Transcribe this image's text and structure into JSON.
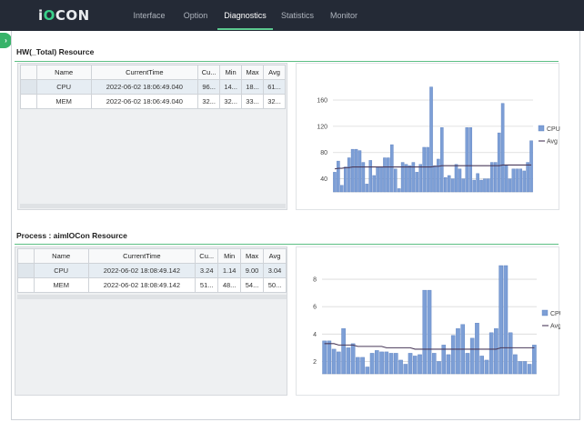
{
  "app": {
    "logo_prefix": "i",
    "logo_accent": "O",
    "logo_suffix": "CON"
  },
  "nav": {
    "items": [
      {
        "label": "Interface",
        "active": false
      },
      {
        "label": "Option",
        "active": false
      },
      {
        "label": "Diagnostics",
        "active": true
      },
      {
        "label": "Statistics",
        "active": false
      },
      {
        "label": "Monitor",
        "active": false
      }
    ]
  },
  "colors": {
    "bar": "#7d9fd6",
    "bar_stroke": "#5a7fbf",
    "avg_line": "#4a3a5a",
    "accent": "#5cc98f"
  },
  "hw": {
    "title": "HW(_Total) Resource",
    "columns": [
      "Name",
      "CurrentTime",
      "Cu...",
      "Min",
      "Max",
      "Avg"
    ],
    "rows": [
      [
        "CPU",
        "2022-06-02 18:06:49.040",
        "96...",
        "14...",
        "18...",
        "61..."
      ],
      [
        "MEM",
        "2022-06-02 18:06:49.040",
        "32...",
        "32...",
        "33...",
        "32..."
      ]
    ]
  },
  "proc": {
    "title": "Process : aimIOCon Resource",
    "columns": [
      "Name",
      "CurrentTime",
      "Cu...",
      "Min",
      "Max",
      "Avg"
    ],
    "rows": [
      [
        "CPU",
        "2022-06-02 18:08:49.142",
        "3.24",
        "1.14",
        "9.00",
        "3.04"
      ],
      [
        "MEM",
        "2022-06-02 18:08:49.142",
        "51...",
        "48...",
        "54...",
        "50..."
      ]
    ]
  },
  "chart_data": [
    {
      "type": "bar",
      "series": [
        {
          "name": "CPU",
          "kind": "bar",
          "values": [
            50,
            67,
            30,
            58,
            72,
            85,
            85,
            83,
            65,
            32,
            68,
            45,
            58,
            58,
            72,
            72,
            92,
            55,
            25,
            65,
            62,
            60,
            65,
            50,
            62,
            88,
            88,
            180,
            60,
            70,
            118,
            42,
            45,
            40,
            62,
            55,
            40,
            118,
            118,
            38,
            48,
            38,
            40,
            40,
            65,
            65,
            110,
            155,
            60,
            40,
            55,
            55,
            55,
            52,
            65,
            98
          ]
        },
        {
          "name": "Avg",
          "kind": "line",
          "values": [
            55,
            56,
            56,
            57,
            57,
            58,
            58,
            58,
            58,
            58,
            58,
            58,
            58,
            58,
            58,
            58,
            58,
            58,
            58,
            58,
            58,
            58,
            58,
            58,
            58,
            58,
            58,
            58,
            59,
            59,
            60,
            60,
            60,
            60,
            60,
            60,
            60,
            60,
            60,
            60,
            60,
            60,
            60,
            60,
            60,
            60,
            60,
            61,
            61,
            61,
            61,
            61,
            61,
            61,
            61,
            61
          ]
        }
      ],
      "y_ticks": [
        40,
        80,
        120,
        160
      ],
      "ylim": [
        20,
        185
      ],
      "legend": "right"
    },
    {
      "type": "bar",
      "series": [
        {
          "name": "CPU",
          "kind": "bar",
          "values": [
            3.5,
            3.5,
            2.9,
            2.7,
            4.4,
            3.0,
            3.3,
            2.3,
            2.3,
            1.6,
            2.6,
            2.8,
            2.7,
            2.7,
            2.6,
            2.6,
            2.1,
            1.8,
            2.6,
            2.4,
            2.5,
            7.2,
            7.2,
            2.6,
            2.0,
            3.2,
            2.5,
            3.9,
            4.4,
            4.7,
            2.6,
            3.7,
            4.8,
            2.4,
            2.1,
            4.1,
            4.4,
            9.0,
            9.0,
            4.1,
            2.5,
            2.0,
            2.0,
            1.8,
            3.2
          ]
        },
        {
          "name": "Avg",
          "kind": "line",
          "values": [
            3.3,
            3.3,
            3.3,
            3.2,
            3.2,
            3.2,
            3.2,
            3.1,
            3.1,
            3.1,
            3.1,
            3.1,
            3.1,
            3.0,
            3.0,
            3.0,
            3.0,
            3.0,
            3.0,
            2.9,
            2.9,
            2.9,
            2.9,
            2.9,
            2.9,
            2.9,
            2.9,
            2.9,
            2.9,
            2.9,
            2.9,
            2.9,
            2.9,
            2.9,
            2.9,
            2.9,
            2.9,
            3.0,
            3.0,
            3.0,
            3.0,
            3.0,
            3.0,
            3.0,
            3.0
          ]
        }
      ],
      "y_ticks": [
        2,
        4,
        6,
        8
      ],
      "ylim": [
        1.1,
        9.0
      ],
      "legend": "right"
    }
  ]
}
